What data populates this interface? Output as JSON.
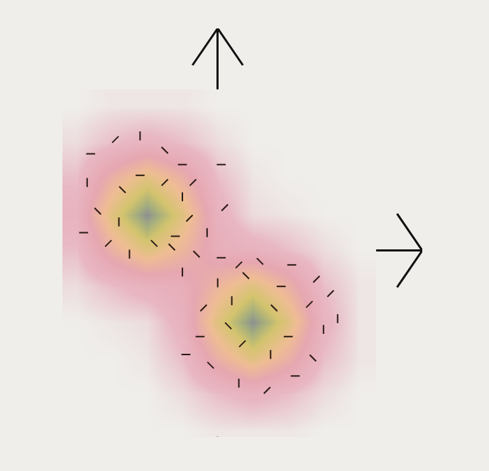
{
  "chart_data": {
    "type": "density",
    "x": [
      -2,
      -1.5,
      -1,
      -0.5,
      0,
      0.5,
      1,
      1.5,
      2
    ],
    "y": [
      -2.5,
      -2,
      -1.5,
      -1,
      -0.5,
      0,
      0.5,
      1,
      1.5,
      2
    ],
    "z": [
      [
        0,
        0,
        0,
        0,
        2,
        2,
        2,
        0,
        0
      ],
      [
        0,
        0,
        0,
        4,
        13,
        19,
        13,
        4,
        0
      ],
      [
        0,
        0,
        2,
        13,
        44,
        66,
        44,
        13,
        2
      ],
      [
        0,
        2,
        4,
        21,
        66,
        100,
        66,
        19,
        2
      ],
      [
        4,
        13,
        21,
        26,
        48,
        66,
        44,
        13,
        2
      ],
      [
        13,
        44,
        66,
        48,
        26,
        21,
        13,
        4,
        0
      ],
      [
        19,
        66,
        100,
        66,
        21,
        4,
        2,
        0,
        0
      ],
      [
        13,
        44,
        66,
        44,
        13,
        2,
        0,
        0,
        0
      ],
      [
        4,
        13,
        19,
        13,
        4,
        0,
        0,
        0,
        0
      ],
      [
        0,
        2,
        2,
        2,
        0,
        0,
        0,
        0,
        0
      ]
    ],
    "points": {
      "x": [
        -1.8,
        -1.45,
        -1.1,
        -0.75,
        -0.5,
        -0.35,
        -1.85,
        -1.7,
        -1.9,
        -1.55,
        -1.25,
        -0.9,
        -0.6,
        -0.4,
        -0.5,
        -1.35,
        -1.1,
        -0.75,
        -1.4,
        -0.65,
        0.05,
        0.1,
        -0.15,
        -0.3,
        0.05,
        0.3,
        -0.5,
        0.6,
        1.05,
        1.4,
        0.0,
        0.4,
        0.9,
        1.3,
        1.5,
        1.35,
        1.1,
        0.7,
        0.3,
        -0.1,
        -0.25,
        -0.2,
        0.2,
        0.8,
        1.0,
        0.35,
        0.75,
        0.15,
        -0.45,
        1.6,
        1.7
      ],
      "y": [
        1.35,
        1.55,
        1.6,
        1.4,
        1.2,
        0.95,
        0.95,
        0.55,
        0.25,
        0.1,
        -0.05,
        0.1,
        0.2,
        0.45,
        0.75,
        0.85,
        1.05,
        0.95,
        0.4,
        0.05,
        1.2,
        0.6,
        0.25,
        -0.05,
        -0.1,
        -0.2,
        -0.3,
        -0.15,
        -0.2,
        -0.4,
        -0.45,
        -0.35,
        -0.5,
        -0.75,
        -1.1,
        -1.5,
        -1.75,
        -1.95,
        -1.85,
        -1.6,
        -1.2,
        -0.8,
        -0.7,
        -0.8,
        -1.2,
        -1.3,
        -1.45,
        -1.05,
        -1.45,
        -0.6,
        -0.95
      ]
    },
    "xlim": [
      -2.2,
      2.9
    ],
    "ylim": [
      -2.6,
      3.1
    ],
    "xticks": [],
    "yticks": [],
    "tick_labels": false,
    "grid": false
  }
}
